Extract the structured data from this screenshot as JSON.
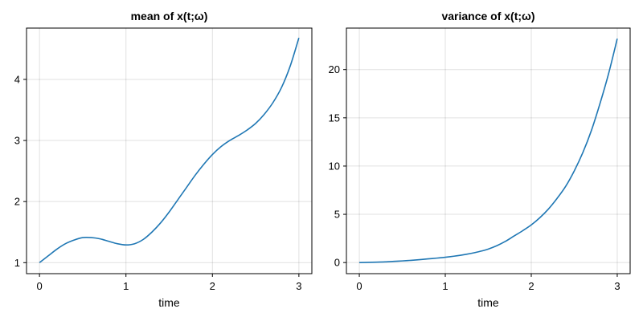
{
  "chart_data": [
    {
      "type": "line",
      "title": "mean of x(t;ω)",
      "xlabel": "time",
      "ylabel": "",
      "xlim": [
        -0.15,
        3.15
      ],
      "ylim": [
        0.82,
        4.84
      ],
      "xticks": [
        0,
        1,
        2,
        3
      ],
      "yticks": [
        1,
        2,
        3,
        4
      ],
      "grid": true,
      "color": "#1f77b4",
      "series": [
        {
          "x": [
            0,
            0.1,
            0.2,
            0.3,
            0.4,
            0.5,
            0.6,
            0.7,
            0.8,
            0.9,
            1.0,
            1.1,
            1.2,
            1.3,
            1.4,
            1.5,
            1.6,
            1.7,
            1.8,
            1.9,
            2.0,
            2.1,
            2.2,
            2.3,
            2.4,
            2.5,
            2.6,
            2.7,
            2.8,
            2.9,
            3.0
          ],
          "values": [
            1.0,
            1.11,
            1.22,
            1.31,
            1.37,
            1.41,
            1.41,
            1.39,
            1.35,
            1.31,
            1.29,
            1.31,
            1.38,
            1.5,
            1.65,
            1.83,
            2.03,
            2.23,
            2.43,
            2.61,
            2.77,
            2.9,
            3.0,
            3.08,
            3.17,
            3.28,
            3.43,
            3.62,
            3.87,
            4.22,
            4.68
          ]
        }
      ]
    },
    {
      "type": "line",
      "title": "variance of x(t;ω)",
      "xlabel": "time",
      "ylabel": "",
      "xlim": [
        -0.15,
        3.15
      ],
      "ylim": [
        -1.15,
        24.3
      ],
      "xticks": [
        0,
        1,
        2,
        3
      ],
      "yticks": [
        0,
        5,
        10,
        15,
        20
      ],
      "grid": true,
      "color": "#1f77b4",
      "series": [
        {
          "x": [
            0,
            0.1,
            0.2,
            0.3,
            0.4,
            0.5,
            0.6,
            0.7,
            0.8,
            0.9,
            1.0,
            1.1,
            1.2,
            1.3,
            1.4,
            1.5,
            1.6,
            1.7,
            1.8,
            1.9,
            2.0,
            2.1,
            2.2,
            2.3,
            2.4,
            2.5,
            2.6,
            2.7,
            2.8,
            2.9,
            3.0
          ],
          "values": [
            0,
            0.02,
            0.04,
            0.07,
            0.12,
            0.17,
            0.23,
            0.3,
            0.38,
            0.46,
            0.55,
            0.66,
            0.79,
            0.95,
            1.15,
            1.4,
            1.75,
            2.2,
            2.75,
            3.3,
            3.9,
            4.65,
            5.55,
            6.65,
            7.9,
            9.5,
            11.4,
            13.7,
            16.5,
            19.6,
            23.2
          ]
        }
      ]
    }
  ]
}
